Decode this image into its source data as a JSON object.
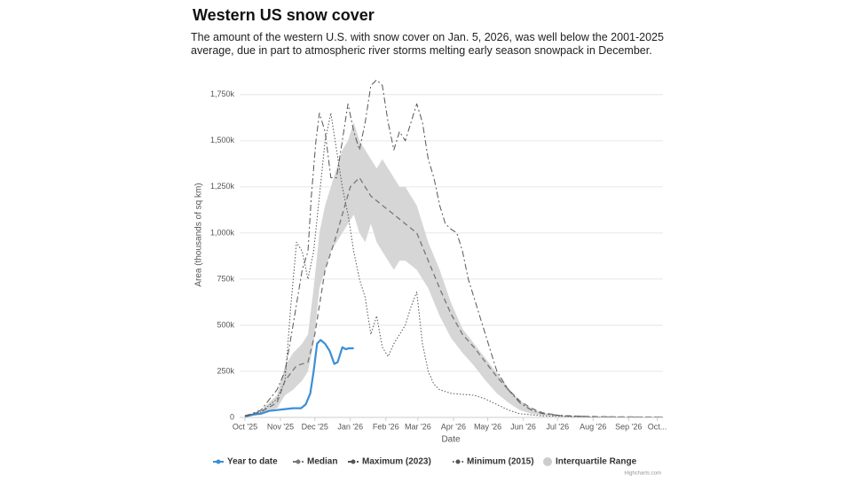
{
  "chart_data": {
    "type": "line",
    "title": "Western US snow cover",
    "subtitle": "The amount of the western U.S. with snow cover on Jan. 5, 2026, was well below the 2001-2025 average, due in part to atmospheric river storms melting early season snowpack in December.",
    "x_label": "Date",
    "y_label": "Area (thousands of sq km)",
    "credit": "Highcharts.com",
    "xlim": [
      0,
      365
    ],
    "xticks": [
      {
        "value": 0,
        "label": "Oct '25"
      },
      {
        "value": 31,
        "label": "Nov '25"
      },
      {
        "value": 61,
        "label": "Dec '25"
      },
      {
        "value": 92,
        "label": "Jan '26"
      },
      {
        "value": 123,
        "label": "Feb '26"
      },
      {
        "value": 151,
        "label": "Mar '26"
      },
      {
        "value": 182,
        "label": "Apr '26"
      },
      {
        "value": 212,
        "label": "May '26"
      },
      {
        "value": 243,
        "label": "Jun '26"
      },
      {
        "value": 273,
        "label": "Jul '26"
      },
      {
        "value": 304,
        "label": "Aug '26"
      },
      {
        "value": 335,
        "label": "Sep '26"
      },
      {
        "value": 360,
        "label": "Oct..."
      }
    ],
    "ylim": [
      0,
      1850
    ],
    "yticks": [
      0,
      {
        "value": 250,
        "label": "250k"
      },
      {
        "value": 500,
        "label": "500k"
      },
      {
        "value": 750,
        "label": "750k"
      },
      {
        "value": 1000,
        "label": "1,000k"
      },
      {
        "value": 1250,
        "label": "1,250k"
      },
      {
        "value": 1500,
        "label": "1,500k"
      },
      {
        "value": 1750,
        "label": "1,750k"
      }
    ],
    "grid": true,
    "series": [
      {
        "name": "Year to date",
        "color": "#3a8fd6",
        "dash": "none",
        "width": 2.2,
        "x": [
          0,
          7,
          14,
          21,
          28,
          35,
          42,
          49,
          53,
          57,
          60,
          63,
          66,
          70,
          74,
          78,
          81,
          85,
          88,
          91,
          95
        ],
        "values": [
          5,
          15,
          20,
          35,
          40,
          45,
          50,
          50,
          70,
          130,
          250,
          400,
          420,
          400,
          360,
          290,
          300,
          380,
          370,
          375,
          375
        ]
      },
      {
        "name": "Median",
        "color": "#777777",
        "dash": "6 4",
        "width": 1.3,
        "x": [
          0,
          14,
          28,
          35,
          45,
          55,
          61,
          70,
          78,
          85,
          92,
          100,
          110,
          120,
          130,
          140,
          150,
          160,
          170,
          180,
          190,
          200,
          210,
          220,
          230,
          240,
          250,
          260,
          275,
          300,
          330,
          365
        ],
        "values": [
          10,
          30,
          80,
          200,
          280,
          300,
          450,
          800,
          950,
          1100,
          1250,
          1300,
          1200,
          1150,
          1100,
          1050,
          1000,
          850,
          700,
          560,
          450,
          380,
          300,
          220,
          150,
          90,
          50,
          25,
          10,
          5,
          3,
          2
        ]
      },
      {
        "name": "Maximum (2023)",
        "color": "#555555",
        "dash": "7 3 2 3",
        "width": 1,
        "x": [
          0,
          14,
          28,
          35,
          42,
          50,
          55,
          58,
          62,
          65,
          70,
          75,
          80,
          85,
          90,
          95,
          100,
          105,
          110,
          115,
          120,
          125,
          130,
          135,
          140,
          145,
          150,
          155,
          160,
          165,
          170,
          175,
          180,
          185,
          190,
          195,
          200,
          205,
          210,
          215,
          220,
          230,
          240,
          250,
          260,
          280,
          310,
          365
        ],
        "values": [
          5,
          40,
          150,
          250,
          500,
          800,
          900,
          1200,
          1500,
          1650,
          1550,
          1300,
          1300,
          1500,
          1700,
          1550,
          1450,
          1600,
          1800,
          1830,
          1800,
          1600,
          1450,
          1550,
          1500,
          1600,
          1700,
          1600,
          1400,
          1300,
          1150,
          1050,
          1020,
          1000,
          900,
          750,
          650,
          550,
          450,
          350,
          250,
          150,
          80,
          40,
          20,
          8,
          3,
          2
        ]
      },
      {
        "name": "Minimum (2015)",
        "color": "#555555",
        "dash": "1.5 2",
        "width": 1,
        "x": [
          0,
          14,
          28,
          35,
          40,
          45,
          50,
          55,
          60,
          65,
          70,
          75,
          80,
          85,
          90,
          95,
          100,
          105,
          110,
          115,
          120,
          125,
          130,
          140,
          145,
          150,
          155,
          160,
          165,
          170,
          180,
          190,
          200,
          210,
          220,
          230,
          240,
          260,
          300,
          365
        ],
        "values": [
          5,
          30,
          100,
          200,
          600,
          950,
          900,
          750,
          900,
          1200,
          1500,
          1650,
          1450,
          1250,
          1100,
          900,
          750,
          650,
          450,
          550,
          380,
          330,
          400,
          500,
          600,
          680,
          400,
          250,
          180,
          150,
          130,
          125,
          120,
          100,
          70,
          40,
          20,
          8,
          3,
          1
        ]
      },
      {
        "name": "Interquartile Range",
        "color": "#d6d6d6",
        "x": [
          0,
          14,
          28,
          35,
          42,
          50,
          55,
          60,
          65,
          70,
          75,
          80,
          85,
          90,
          95,
          100,
          105,
          110,
          115,
          120,
          125,
          130,
          135,
          140,
          150,
          160,
          170,
          180,
          190,
          200,
          210,
          220,
          230,
          240,
          250,
          260,
          275,
          300,
          330,
          365
        ],
        "low": [
          0,
          20,
          50,
          120,
          150,
          200,
          250,
          400,
          700,
          800,
          900,
          950,
          1000,
          1050,
          1100,
          1000,
          950,
          1050,
          950,
          900,
          850,
          800,
          850,
          850,
          800,
          700,
          550,
          430,
          350,
          280,
          200,
          130,
          80,
          40,
          20,
          10,
          5,
          2,
          1,
          0
        ],
        "high": [
          10,
          40,
          120,
          280,
          350,
          400,
          450,
          700,
          1000,
          1150,
          1250,
          1350,
          1450,
          1500,
          1600,
          1500,
          1450,
          1400,
          1350,
          1400,
          1350,
          1300,
          1250,
          1250,
          1150,
          950,
          800,
          620,
          480,
          400,
          320,
          240,
          160,
          90,
          50,
          25,
          12,
          5,
          3,
          2
        ]
      }
    ]
  }
}
